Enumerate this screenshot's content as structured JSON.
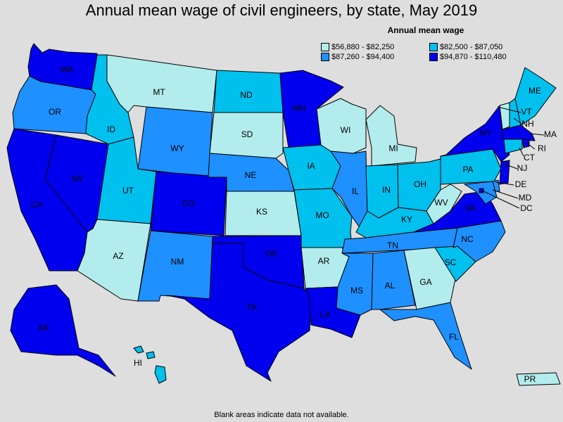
{
  "title": "Annual mean wage of civil engineers, by state, May 2019",
  "legend": {
    "title": "Annual mean wage",
    "items": [
      {
        "label": "$56,880 - $82,250",
        "color": "#b3ecec"
      },
      {
        "label": "$82,500 - $87,050",
        "color": "#00c0ee"
      },
      {
        "label": "$87,260 - $94,400",
        "color": "#1e90ff"
      },
      {
        "label": "$94,870 - $110,480",
        "color": "#0000ee"
      }
    ]
  },
  "footnote": "Blank areas indicate data not available.",
  "states": [
    {
      "abbr": "WA",
      "bin": 3
    },
    {
      "abbr": "OR",
      "bin": 2
    },
    {
      "abbr": "CA",
      "bin": 3
    },
    {
      "abbr": "NV",
      "bin": 3
    },
    {
      "abbr": "ID",
      "bin": 1
    },
    {
      "abbr": "MT",
      "bin": 0
    },
    {
      "abbr": "WY",
      "bin": 2
    },
    {
      "abbr": "UT",
      "bin": 1
    },
    {
      "abbr": "AZ",
      "bin": 0
    },
    {
      "abbr": "CO",
      "bin": 3
    },
    {
      "abbr": "NM",
      "bin": 2
    },
    {
      "abbr": "ND",
      "bin": 1
    },
    {
      "abbr": "SD",
      "bin": 0
    },
    {
      "abbr": "NE",
      "bin": 2
    },
    {
      "abbr": "KS",
      "bin": 0
    },
    {
      "abbr": "OK",
      "bin": 3
    },
    {
      "abbr": "TX",
      "bin": 3
    },
    {
      "abbr": "MN",
      "bin": 3
    },
    {
      "abbr": "IA",
      "bin": 1
    },
    {
      "abbr": "MO",
      "bin": 1
    },
    {
      "abbr": "AR",
      "bin": 0
    },
    {
      "abbr": "LA",
      "bin": 3
    },
    {
      "abbr": "WI",
      "bin": 0
    },
    {
      "abbr": "IL",
      "bin": 2
    },
    {
      "abbr": "MI",
      "bin": 0
    },
    {
      "abbr": "IN",
      "bin": 1
    },
    {
      "abbr": "OH",
      "bin": 1
    },
    {
      "abbr": "KY",
      "bin": 1
    },
    {
      "abbr": "TN",
      "bin": 2
    },
    {
      "abbr": "MS",
      "bin": 2
    },
    {
      "abbr": "AL",
      "bin": 2
    },
    {
      "abbr": "GA",
      "bin": 0
    },
    {
      "abbr": "FL",
      "bin": 2
    },
    {
      "abbr": "SC",
      "bin": 1
    },
    {
      "abbr": "NC",
      "bin": 2
    },
    {
      "abbr": "VA",
      "bin": 3
    },
    {
      "abbr": "WV",
      "bin": 0
    },
    {
      "abbr": "PA",
      "bin": 1
    },
    {
      "abbr": "NY",
      "bin": 3
    },
    {
      "abbr": "VT",
      "bin": 0
    },
    {
      "abbr": "NH",
      "bin": 1
    },
    {
      "abbr": "ME",
      "bin": 1
    },
    {
      "abbr": "MA",
      "bin": 3
    },
    {
      "abbr": "RI",
      "bin": 3
    },
    {
      "abbr": "CT",
      "bin": 1
    },
    {
      "abbr": "NJ",
      "bin": 3
    },
    {
      "abbr": "DE",
      "bin": 2
    },
    {
      "abbr": "MD",
      "bin": 2
    },
    {
      "abbr": "DC",
      "bin": 3
    },
    {
      "abbr": "AK",
      "bin": 3
    },
    {
      "abbr": "HI",
      "bin": 1
    },
    {
      "abbr": "PR",
      "bin": 0
    }
  ]
}
